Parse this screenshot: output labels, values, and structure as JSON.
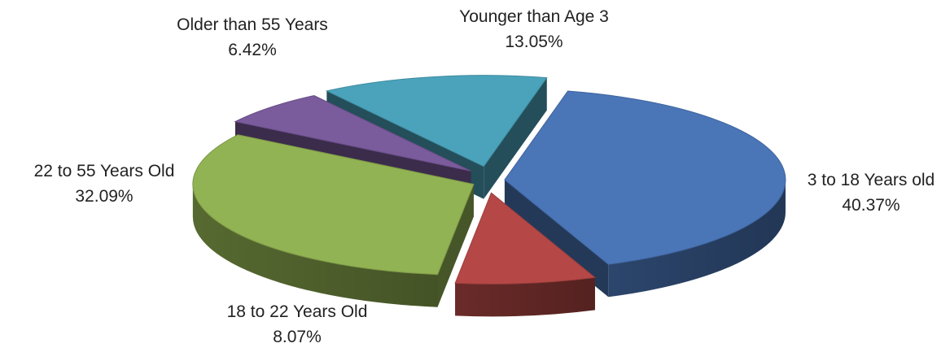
{
  "chart_data": {
    "type": "pie",
    "style": "3d-exploded",
    "legend": "none",
    "slices": [
      {
        "label": "3 to 18 Years old",
        "value": 40.37,
        "value_label": "40.37%",
        "color": "#4a76b8"
      },
      {
        "label": "18 to 22 Years Old",
        "value": 8.07,
        "value_label": "8.07%",
        "color": "#b54846"
      },
      {
        "label": "22 to 55 Years Old",
        "value": 32.09,
        "value_label": "32.09%",
        "color": "#92b353"
      },
      {
        "label": "Older than 55 Years",
        "value": 6.42,
        "value_label": "6.42%",
        "color": "#7a5b9c"
      },
      {
        "label": "Younger than Age 3",
        "value": 13.05,
        "value_label": "13.05%",
        "color": "#4aa3bb"
      }
    ]
  }
}
